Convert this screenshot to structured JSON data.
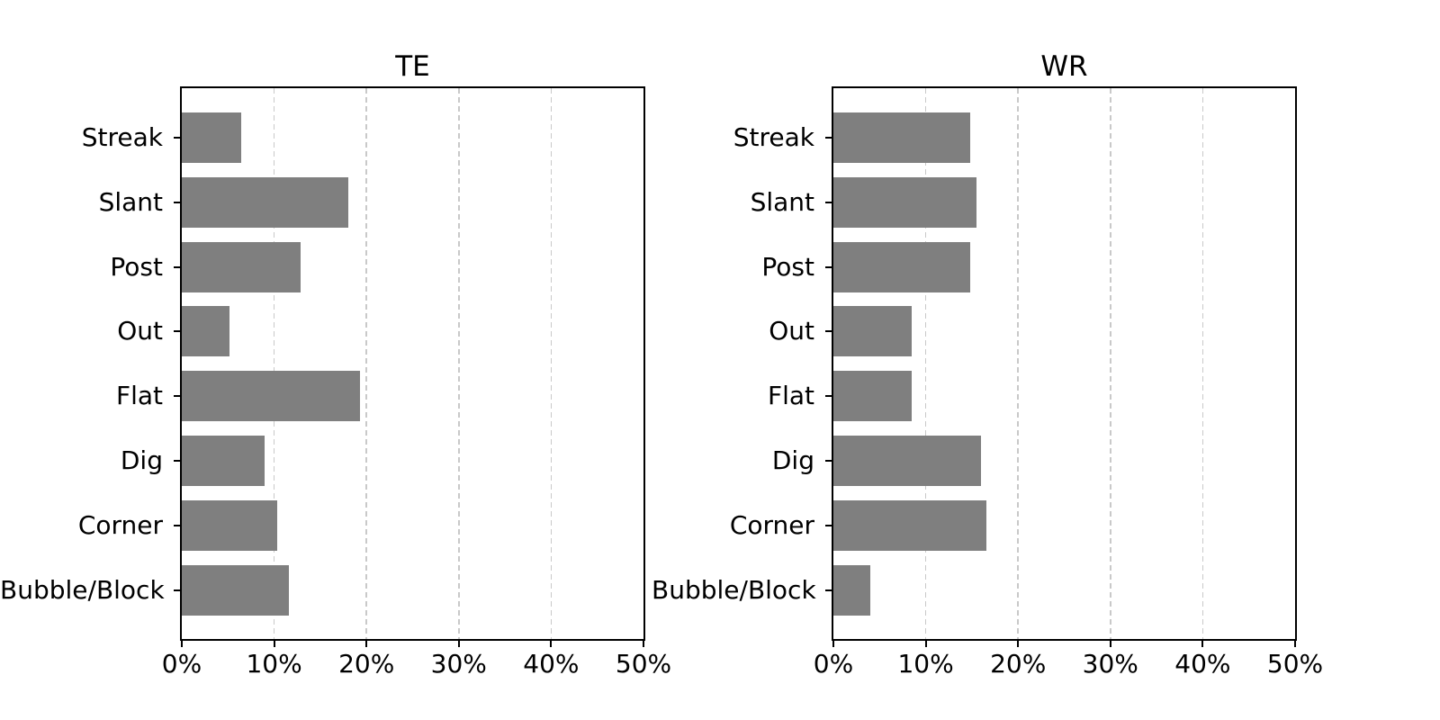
{
  "style": {
    "background": "#ffffff",
    "bar_color": "#7f7f7f",
    "grid_color": "#c9c9c9",
    "axis_color": "#000000",
    "text_color": "#000000"
  },
  "chart_data": [
    {
      "type": "bar",
      "orientation": "horizontal",
      "title": "TE",
      "categories": [
        "Streak",
        "Slant",
        "Post",
        "Out",
        "Flat",
        "Dig",
        "Corner",
        "Bubble/Block"
      ],
      "categories_order": "top-to-bottom",
      "values": [
        6.4,
        18.0,
        12.9,
        5.2,
        19.3,
        9.0,
        10.3,
        11.6
      ],
      "unit": "%",
      "xlabel": "",
      "ylabel": "",
      "xlim": [
        0,
        50
      ],
      "xtick_values": [
        0,
        10,
        20,
        30,
        40,
        50
      ],
      "xtick_labels": [
        "0%",
        "10%",
        "20%",
        "30%",
        "40%",
        "50%"
      ],
      "grid": "vertical dashed",
      "legend": "none"
    },
    {
      "type": "bar",
      "orientation": "horizontal",
      "title": "WR",
      "categories": [
        "Streak",
        "Slant",
        "Post",
        "Out",
        "Flat",
        "Dig",
        "Corner",
        "Bubble/Block"
      ],
      "categories_order": "top-to-bottom",
      "values": [
        14.8,
        15.5,
        14.8,
        8.5,
        8.5,
        16.0,
        16.6,
        4.0
      ],
      "unit": "%",
      "xlabel": "",
      "ylabel": "",
      "xlim": [
        0,
        50
      ],
      "xtick_values": [
        0,
        10,
        20,
        30,
        40,
        50
      ],
      "xtick_labels": [
        "0%",
        "10%",
        "20%",
        "30%",
        "40%",
        "50%"
      ],
      "grid": "vertical dashed",
      "legend": "none"
    }
  ]
}
